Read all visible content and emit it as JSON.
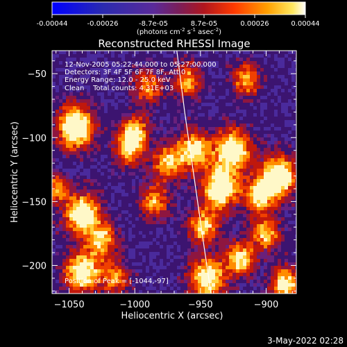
{
  "colorbar": {
    "tick_labels": [
      "-0.00044",
      "-0.00026",
      "-8.7e-05",
      "8.7e-05",
      "0.00026",
      "0.00044"
    ],
    "label_prefix": "(photons cm",
    "label_exp1": "-2",
    "label_mid1": " s",
    "label_exp2": "-1",
    "label_mid2": " asec",
    "label_exp3": "-2",
    "label_suffix": ")"
  },
  "chart_data": {
    "type": "heatmap",
    "title": "Reconstructed RHESSI Image",
    "xlabel": "Heliocentric X (arcsec)",
    "ylabel": "Heliocentric Y (arcsec)",
    "xlim": [
      -1063,
      -877
    ],
    "ylim": [
      -222,
      -32
    ],
    "x_ticks": [
      -1050,
      -1000,
      -950,
      -900
    ],
    "y_ticks": [
      -50,
      -100,
      -150,
      -200
    ],
    "x_tick_labels": [
      "−1050",
      "−1000",
      "−950",
      "−900"
    ],
    "y_tick_labels": [
      "−50",
      "−100",
      "−150",
      "−200"
    ],
    "color_range": [
      -0.00044,
      0.00044
    ],
    "limb_curve": [
      [
        -968,
        -32
      ],
      [
        -962,
        -80
      ],
      [
        -955,
        -130
      ],
      [
        -948,
        -180
      ],
      [
        -942,
        -222
      ]
    ],
    "peak_position": [
      -1044,
      -97
    ],
    "annotations": [
      "12-Nov-2005 05:22:44.000 to 05:27:00.000",
      "Detectors: 3F 4F 5F 6F 7F 8F, Att 0",
      "Energy Range: 12.0 - 25.0 keV",
      "Clean    Total counts: 4.31E+03"
    ],
    "peak_label": "Position of Peak = [-1044,-97]"
  },
  "timestamp": "3-May-2022 02:28"
}
